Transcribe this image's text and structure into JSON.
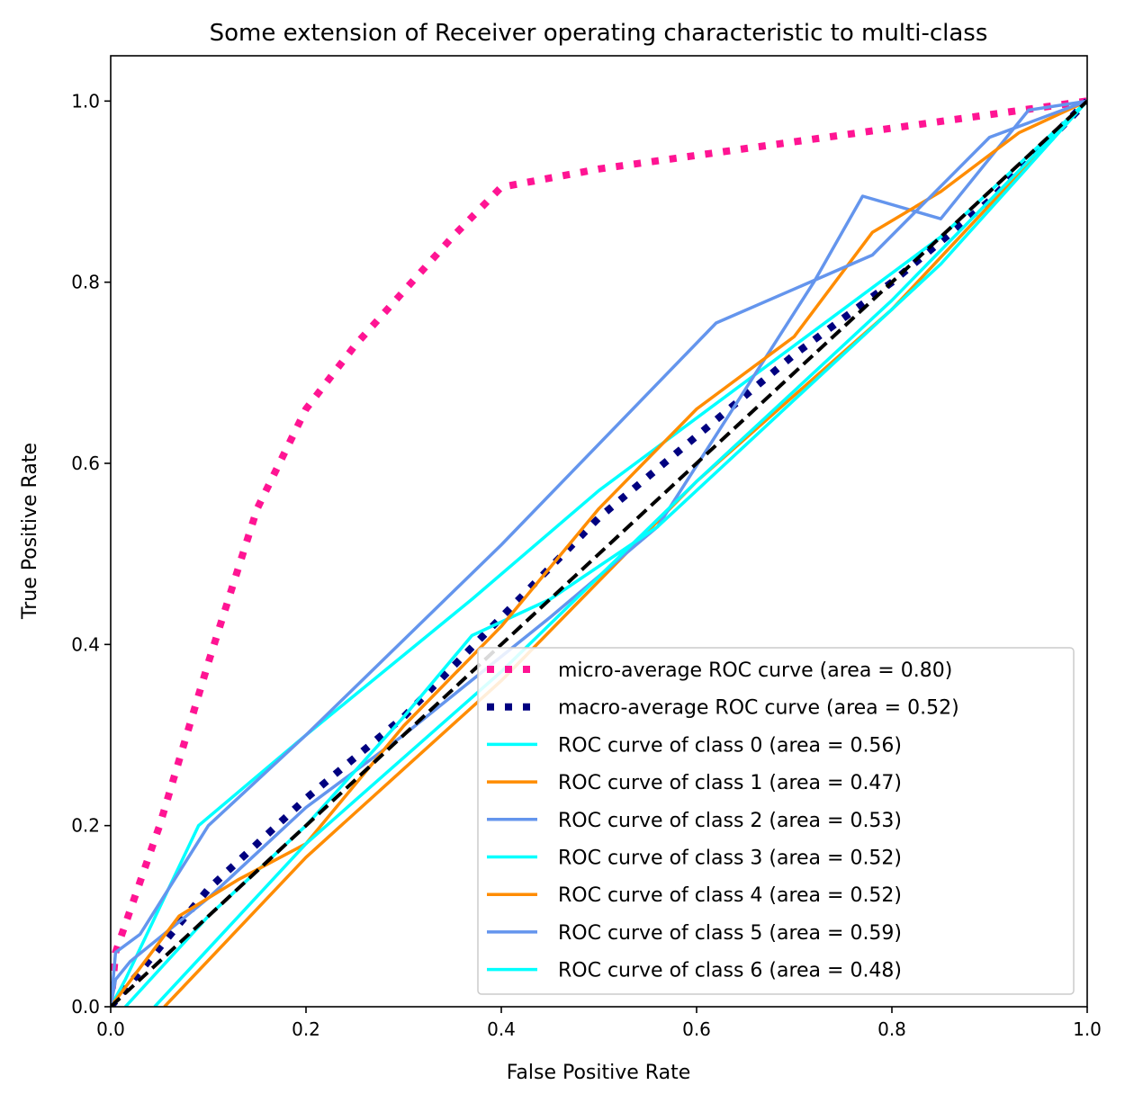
{
  "chart_data": {
    "type": "line",
    "title": "Some extension of Receiver operating characteristic to multi-class",
    "xlabel": "False Positive Rate",
    "ylabel": "True Positive Rate",
    "xlim": [
      0.0,
      1.0
    ],
    "ylim": [
      0.0,
      1.05
    ],
    "xticks": [
      "0.0",
      "0.2",
      "0.4",
      "0.6",
      "0.8",
      "1.0"
    ],
    "yticks": [
      "0.0",
      "0.2",
      "0.4",
      "0.6",
      "0.8",
      "1.0"
    ],
    "grid": false,
    "legend_position": "lower-right",
    "diagonal": {
      "x": [
        0,
        1
      ],
      "y": [
        0,
        1
      ],
      "color": "#000000",
      "style": "dashed"
    },
    "series": [
      {
        "name": "micro-average ROC curve (area = 0.80)",
        "color": "#ff1493",
        "style": "dotted-thick",
        "x": [
          0.0,
          0.005,
          0.05,
          0.1,
          0.15,
          0.2,
          0.25,
          0.3,
          0.35,
          0.4,
          0.5,
          0.6,
          0.7,
          0.8,
          0.9,
          1.0
        ],
        "y": [
          0.0,
          0.06,
          0.2,
          0.38,
          0.55,
          0.66,
          0.73,
          0.79,
          0.85,
          0.905,
          0.925,
          0.94,
          0.955,
          0.97,
          0.985,
          1.0
        ]
      },
      {
        "name": "macro-average ROC curve (area = 0.52)",
        "color": "#000080",
        "style": "dotted-thick",
        "x": [
          0.0,
          0.1,
          0.2,
          0.3,
          0.4,
          0.5,
          0.6,
          0.7,
          0.8,
          0.9,
          1.0
        ],
        "y": [
          0.0,
          0.13,
          0.23,
          0.32,
          0.43,
          0.54,
          0.63,
          0.72,
          0.8,
          0.89,
          1.0
        ]
      },
      {
        "name": "ROC curve of class 0 (area = 0.56)",
        "color": "#00ffff",
        "style": "solid",
        "x": [
          0.0,
          0.015,
          0.09,
          0.2,
          0.37,
          0.5,
          0.7,
          0.85,
          1.0
        ],
        "y": [
          0.0,
          0.03,
          0.2,
          0.3,
          0.45,
          0.57,
          0.73,
          0.85,
          1.0
        ]
      },
      {
        "name": "ROC curve of class 1 (area = 0.47)",
        "color": "#ff8c00",
        "style": "solid",
        "x": [
          0.055,
          0.2,
          0.4,
          0.6,
          0.8,
          1.0
        ],
        "y": [
          0.0,
          0.165,
          0.36,
          0.58,
          0.77,
          1.0
        ]
      },
      {
        "name": "ROC curve of class 2 (area = 0.53)",
        "color": "#6495ed",
        "style": "solid",
        "x": [
          0.0,
          0.005,
          0.02,
          0.1,
          0.2,
          0.3,
          0.45,
          0.56,
          0.72,
          0.77,
          0.85,
          0.94,
          1.0
        ],
        "y": [
          0.0,
          0.03,
          0.05,
          0.12,
          0.22,
          0.3,
          0.43,
          0.53,
          0.8,
          0.895,
          0.87,
          0.99,
          1.0
        ]
      },
      {
        "name": "ROC curve of class 3 (area = 0.52)",
        "color": "#00ffff",
        "style": "solid",
        "x": [
          0.015,
          0.1,
          0.2,
          0.3,
          0.37,
          0.45,
          0.56,
          0.7,
          0.85,
          1.0
        ],
        "y": [
          0.0,
          0.1,
          0.2,
          0.32,
          0.41,
          0.45,
          0.53,
          0.67,
          0.82,
          1.0
        ]
      },
      {
        "name": "ROC curve of class 4 (area = 0.52)",
        "color": "#ff8c00",
        "style": "solid",
        "x": [
          0.0,
          0.07,
          0.13,
          0.2,
          0.3,
          0.4,
          0.5,
          0.6,
          0.7,
          0.78,
          0.85,
          0.93,
          1.0
        ],
        "y": [
          0.0,
          0.1,
          0.14,
          0.18,
          0.31,
          0.42,
          0.55,
          0.66,
          0.74,
          0.855,
          0.9,
          0.965,
          1.0
        ]
      },
      {
        "name": "ROC curve of class 5 (area = 0.59)",
        "color": "#6495ed",
        "style": "solid",
        "x": [
          0.0,
          0.005,
          0.03,
          0.1,
          0.2,
          0.4,
          0.62,
          0.78,
          0.9,
          1.0
        ],
        "y": [
          0.0,
          0.06,
          0.08,
          0.2,
          0.3,
          0.51,
          0.755,
          0.83,
          0.96,
          1.0
        ]
      },
      {
        "name": "ROC curve of class 6 (area = 0.48)",
        "color": "#00ffff",
        "style": "solid",
        "x": [
          0.045,
          0.2,
          0.4,
          0.6,
          0.8,
          1.0
        ],
        "y": [
          0.0,
          0.18,
          0.37,
          0.58,
          0.78,
          1.0
        ]
      }
    ]
  }
}
